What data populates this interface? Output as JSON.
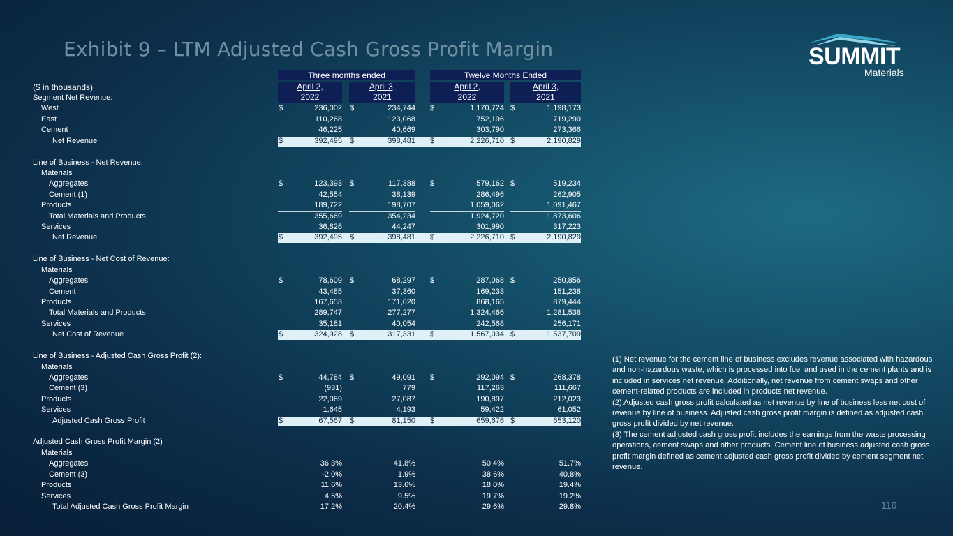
{
  "title": "Exhibit 9 – LTM Adjusted Cash Gross Profit Margin",
  "logo": {
    "name": "SUMMIT",
    "sub": "Materials"
  },
  "page_number": "116",
  "units_label": "($ in thousands)",
  "header": {
    "three_months": "Three months ended",
    "twelve_months": "Twelve Months Ended",
    "cols": [
      {
        "a": "April 2,",
        "b": "2022"
      },
      {
        "a": "April 3,",
        "b": "2021"
      },
      {
        "a": "April 2,",
        "b": "2022"
      },
      {
        "a": "April 3,",
        "b": "2021"
      }
    ]
  },
  "rows": [
    {
      "label": "Segment Net Revenue:",
      "indent": 0
    },
    {
      "label": "West",
      "indent": 1,
      "dollar": true,
      "v": [
        "236,002",
        "234,744",
        "1,170,724",
        "1,198,173"
      ]
    },
    {
      "label": "East",
      "indent": 1,
      "v": [
        "110,268",
        "123,068",
        "752,196",
        "719,290"
      ]
    },
    {
      "label": "Cement",
      "indent": 1,
      "v": [
        "46,225",
        "40,669",
        "303,790",
        "273,366"
      ]
    },
    {
      "label": "Net Revenue",
      "indent": 3,
      "dollar": true,
      "hl": true,
      "v": [
        "392,495",
        "398,481",
        "2,226,710",
        "2,190,829"
      ]
    },
    {
      "label": "",
      "indent": 0
    },
    {
      "label": "Line of Business - Net Revenue:",
      "indent": 0
    },
    {
      "label": "Materials",
      "indent": 1
    },
    {
      "label": "Aggregates",
      "indent": 2,
      "dollar": true,
      "v": [
        "123,393",
        "117,388",
        "579,162",
        "519,234"
      ]
    },
    {
      "label": "Cement (1)",
      "indent": 2,
      "v": [
        "42,554",
        "38,139",
        "286,496",
        "262,905"
      ]
    },
    {
      "label": "Products",
      "indent": 1,
      "v": [
        "189,722",
        "198,707",
        "1,059,062",
        "1,091,467"
      ]
    },
    {
      "label": "Total Materials and Products",
      "indent": 2,
      "ul": true,
      "v": [
        "355,669",
        "354,234",
        "1,924,720",
        "1,873,606"
      ]
    },
    {
      "label": "Services",
      "indent": 1,
      "v": [
        "36,826",
        "44,247",
        "301,990",
        "317,223"
      ]
    },
    {
      "label": "Net Revenue",
      "indent": 3,
      "dollar": true,
      "hl": true,
      "v": [
        "392,495",
        "398,481",
        "2,226,710",
        "2,190,829"
      ]
    },
    {
      "label": "",
      "indent": 0
    },
    {
      "label": "Line of Business - Net Cost of Revenue:",
      "indent": 0
    },
    {
      "label": "Materials",
      "indent": 1
    },
    {
      "label": "Aggregates",
      "indent": 2,
      "dollar": true,
      "v": [
        "78,609",
        "68,297",
        "287,068",
        "250,856"
      ]
    },
    {
      "label": "Cement",
      "indent": 2,
      "v": [
        "43,485",
        "37,360",
        "169,233",
        "151,238"
      ]
    },
    {
      "label": "Products",
      "indent": 1,
      "v": [
        "167,653",
        "171,620",
        "868,165",
        "879,444"
      ]
    },
    {
      "label": "Total Materials and Products",
      "indent": 2,
      "ul": true,
      "v": [
        "289,747",
        "277,277",
        "1,324,466",
        "1,281,538"
      ]
    },
    {
      "label": "Services",
      "indent": 1,
      "v": [
        "35,181",
        "40,054",
        "242,568",
        "256,171"
      ]
    },
    {
      "label": "Net Cost of Revenue",
      "indent": 3,
      "dollar": true,
      "hl": true,
      "v": [
        "324,928",
        "317,331",
        "1,567,034",
        "1,537,709"
      ]
    },
    {
      "label": "",
      "indent": 0
    },
    {
      "label": "Line of Business - Adjusted Cash Gross Profit (2):",
      "indent": 0
    },
    {
      "label": "Materials",
      "indent": 1
    },
    {
      "label": "Aggregates",
      "indent": 2,
      "dollar": true,
      "v": [
        "44,784",
        "49,091",
        "292,094",
        "268,378"
      ]
    },
    {
      "label": "Cement (3)",
      "indent": 2,
      "v": [
        "(931)",
        "779",
        "117,263",
        "111,667"
      ]
    },
    {
      "label": "Products",
      "indent": 1,
      "v": [
        "22,069",
        "27,087",
        "190,897",
        "212,023"
      ]
    },
    {
      "label": "Services",
      "indent": 1,
      "v": [
        "1,645",
        "4,193",
        "59,422",
        "61,052"
      ]
    },
    {
      "label": "Adjusted Cash Gross Profit",
      "indent": 3,
      "dollar": true,
      "hl": true,
      "v": [
        "67,567",
        "81,150",
        "659,676",
        "653,120"
      ]
    },
    {
      "label": "",
      "indent": 0
    },
    {
      "label": "Adjusted Cash Gross Profit Margin (2)",
      "indent": 0
    },
    {
      "label": "Materials",
      "indent": 1
    },
    {
      "label": "Aggregates",
      "indent": 2,
      "v": [
        "36.3%",
        "41.8%",
        "50.4%",
        "51.7%"
      ]
    },
    {
      "label": "Cement (3)",
      "indent": 2,
      "v": [
        "-2.0%",
        "1.9%",
        "38.6%",
        "40.8%"
      ]
    },
    {
      "label": "Products",
      "indent": 1,
      "v": [
        "11.6%",
        "13.6%",
        "18.0%",
        "19.4%"
      ]
    },
    {
      "label": "Services",
      "indent": 1,
      "v": [
        "4.5%",
        "9.5%",
        "19.7%",
        "19.2%"
      ]
    },
    {
      "label": "Total Adjusted Cash Gross Profit Margin",
      "indent": 3,
      "v": [
        "17.2%",
        "20.4%",
        "29.6%",
        "29.8%"
      ]
    }
  ],
  "notes": [
    "(1) Net revenue for the cement line of business excludes revenue associated with hazardous and non-hazardous waste, which is processed into fuel and used in the cement plants and is included in services net revenue. Additionally, net revenue from cement swaps and other cement-related products are included in products net revenue.",
    "(2) Adjusted cash gross profit calculated as net revenue by line of business less net cost of revenue by line of business. Adjusted cash gross profit margin is defined as adjusted cash gross profit divided by net revenue.",
    "(3) The cement adjusted cash gross profit includes the earnings from the waste processing operations, cement swaps and other products. Cement line of business adjusted cash gross profit margin defined as cement adjusted cash gross profit divided by cement segment net revenue."
  ]
}
